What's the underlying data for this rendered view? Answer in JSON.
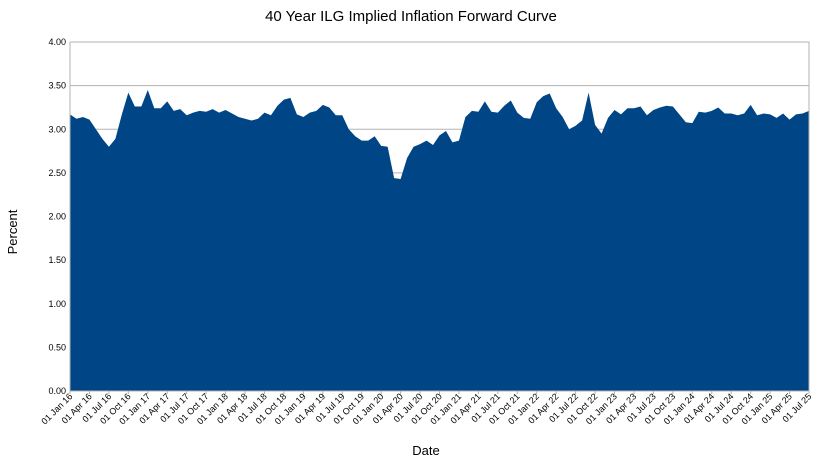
{
  "chart_data": {
    "type": "area",
    "title": "40 Year ILG Implied Inflation Forward Curve",
    "xlabel": "Date",
    "ylabel": "Percent",
    "ylim": [
      0,
      4
    ],
    "yticks": [
      "0.00",
      "0.50",
      "1.00",
      "1.50",
      "2.00",
      "2.50",
      "3.00",
      "3.50",
      "4.00"
    ],
    "xticks": [
      "01 Jan 16",
      "01 Apr 16",
      "01 Jul 16",
      "01 Oct 16",
      "01 Jan 17",
      "01 Apr 17",
      "01 Jul 17",
      "01 Oct 17",
      "01 Jan 18",
      "01 Apr 18",
      "01 Jul 18",
      "01 Oct 18",
      "01 Jan 19",
      "01 Apr 19",
      "01 Jul 19",
      "01 Oct 19",
      "01 Jan 20",
      "01 Apr 20",
      "01 Jul 20",
      "01 Oct 20",
      "01 Jan 21",
      "01 Apr 21",
      "01 Jul 21",
      "01 Oct 21",
      "01 Jan 22",
      "01 Apr 22",
      "01 Jul 22",
      "01 Oct 22",
      "01 Jan 23",
      "01 Apr 23",
      "01 Jul 23",
      "01 Oct 23",
      "01 Jan 24",
      "01 Apr 24",
      "01 Jul 24",
      "01 Oct 24",
      "01 Jan 25",
      "01 Apr 25",
      "01 Jul 25"
    ],
    "grid": "horizontal",
    "color": "#004586",
    "values": [
      3.17,
      3.12,
      3.14,
      3.11,
      3.0,
      2.89,
      2.8,
      2.89,
      3.17,
      3.42,
      3.26,
      3.26,
      3.45,
      3.24,
      3.24,
      3.32,
      3.21,
      3.23,
      3.16,
      3.19,
      3.21,
      3.2,
      3.23,
      3.19,
      3.22,
      3.18,
      3.14,
      3.12,
      3.1,
      3.12,
      3.19,
      3.16,
      3.27,
      3.34,
      3.36,
      3.17,
      3.14,
      3.19,
      3.21,
      3.28,
      3.25,
      3.16,
      3.16,
      3.0,
      2.92,
      2.87,
      2.87,
      2.92,
      2.81,
      2.8,
      2.44,
      2.43,
      2.67,
      2.8,
      2.83,
      2.87,
      2.82,
      2.93,
      2.98,
      2.85,
      2.87,
      3.14,
      3.21,
      3.2,
      3.32,
      3.2,
      3.19,
      3.27,
      3.33,
      3.19,
      3.13,
      3.12,
      3.31,
      3.38,
      3.41,
      3.24,
      3.14,
      3.0,
      3.04,
      3.1,
      3.42,
      3.05,
      2.95,
      3.13,
      3.22,
      3.17,
      3.24,
      3.24,
      3.26,
      3.16,
      3.22,
      3.25,
      3.27,
      3.26,
      3.17,
      3.08,
      3.07,
      3.2,
      3.19,
      3.21,
      3.25,
      3.18,
      3.18,
      3.16,
      3.18,
      3.28,
      3.16,
      3.18,
      3.17,
      3.13,
      3.18,
      3.11,
      3.17,
      3.18,
      3.21
    ]
  }
}
